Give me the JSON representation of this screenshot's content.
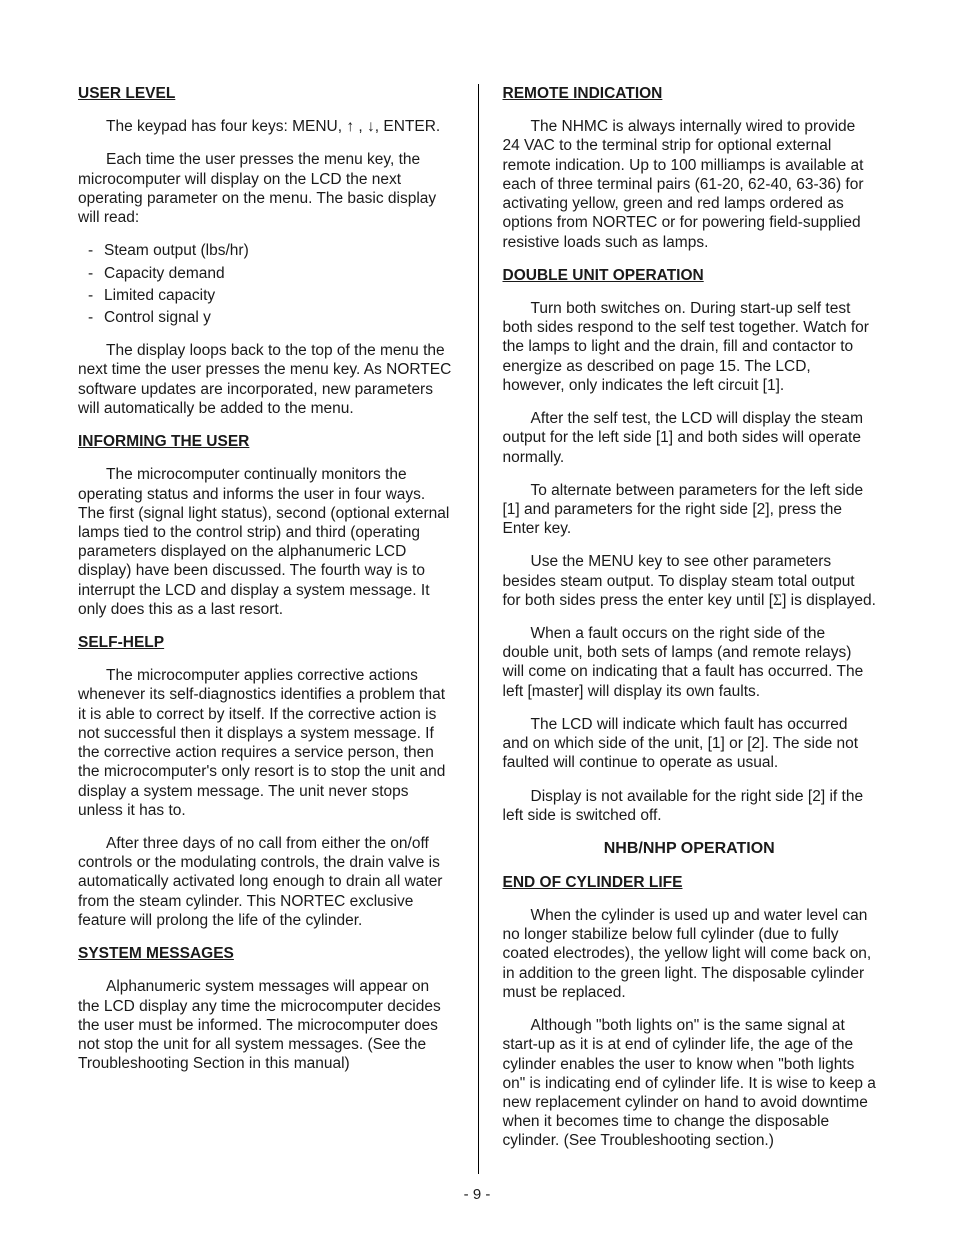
{
  "page_number": "- 9 -",
  "left": {
    "user_level": {
      "heading": "USER LEVEL",
      "p1_a": "The keypad has four keys:  MENU, ",
      "p1_b": " , ",
      "p1_c": ", ENTER.",
      "arrow_up": "↑",
      "arrow_down": "↓",
      "p2": "Each time the user presses the menu key, the microcomputer will display on the LCD the next operating parameter on the menu.  The basic display will read:",
      "items": [
        "Steam output (lbs/hr)",
        "Capacity demand",
        "Limited capacity",
        "Control signal y"
      ],
      "p3": "The display loops back to the top of the menu the next time the user presses the menu key.  As NORTEC software updates are incorporated, new parameters will automatically be added to the menu."
    },
    "informing": {
      "heading": "INFORMING THE USER",
      "p1": "The microcomputer continually monitors the operating status and informs the user in four ways.  The first (signal light status), second (optional external lamps tied to the control strip) and third (operating parameters displayed on the alphanumeric LCD display) have been discussed.  The fourth way is to interrupt the LCD and display a system message.  It only does this as a last resort."
    },
    "selfhelp": {
      "heading": "SELF-HELP",
      "p1": "The microcomputer applies corrective actions whenever its self-diagnostics identifies a problem that it is able to correct by itself.  If the corrective action is not successful then it displays a system message.  If the corrective action requires a service person, then the microcomputer's only resort is to stop the unit and display a system message.  The unit never stops unless it has to.",
      "p2": "After three days of no call from either the on/off controls or the modulating controls, the drain valve is automatically activated long enough to drain all water from the steam cylinder.  This NORTEC exclusive feature will prolong the life of the cylinder."
    },
    "sysmsg": {
      "heading": "SYSTEM MESSAGES",
      "p1": "Alphanumeric system messages will appear on the LCD display any time the microcomputer decides the user must be informed.  The microcomputer does not stop the unit for all system messages.  (See the Troubleshooting Section in this manual)"
    }
  },
  "right": {
    "remote": {
      "heading": "REMOTE INDICATION",
      "p1": "The NHMC is always internally wired to provide 24 VAC to the terminal strip for optional external remote indication.  Up to 100 milliamps is available at each of three terminal pairs (61-20, 62-40, 63-36) for activating yellow, green and red lamps ordered as options from NORTEC or for powering field-supplied resistive loads such as lamps."
    },
    "double": {
      "heading": "DOUBLE UNIT OPERATION",
      "p1": "Turn both switches on.  During start-up self test both sides respond to the self test together.  Watch for the lamps to light and the drain, fill and contactor to energize as described on page 15.  The LCD, however, only indicates the left circuit [1].",
      "p2": "After the self test, the LCD will display the steam output for the left side [1] and both sides will operate normally.",
      "p3": "To alternate between parameters for the left side [1] and parameters for the right side [2], press the Enter key.",
      "p4_a": "Use the MENU key to see other parameters besides steam output.  To display steam total output for both sides press the enter key until [",
      "sigma": "Σ",
      "p4_b": "] is displayed.",
      "p5": "When a fault occurs on the right side of the double unit, both sets of lamps (and remote relays) will come on indicating that a fault has occurred.  The left [master] will display its own faults.",
      "p6": "The LCD will indicate which fault has occurred and on which side of the unit, [1] or [2].  The side not faulted will continue to operate as usual.",
      "p7": "Display is not available for the right side [2] if the left side is switched off."
    },
    "nhb": {
      "main": "NHB/NHP OPERATION",
      "heading": "END OF CYLINDER LIFE",
      "p1": "When the cylinder is used up and water level can no longer stabilize below full cylinder (due to fully coated electrodes), the yellow light will come back on, in addition to the green light.  The disposable cylinder must be replaced.",
      "p2": "Although \"both lights on\" is the same signal at start-up as it is at end of cylinder life, the age of the cylinder enables the user to know when \"both lights on\" is indicating end of cylinder life.  It is wise to keep a new replacement cylinder on hand to avoid downtime when it becomes time to change the disposable cylinder.  (See Troubleshooting section.)"
    }
  }
}
